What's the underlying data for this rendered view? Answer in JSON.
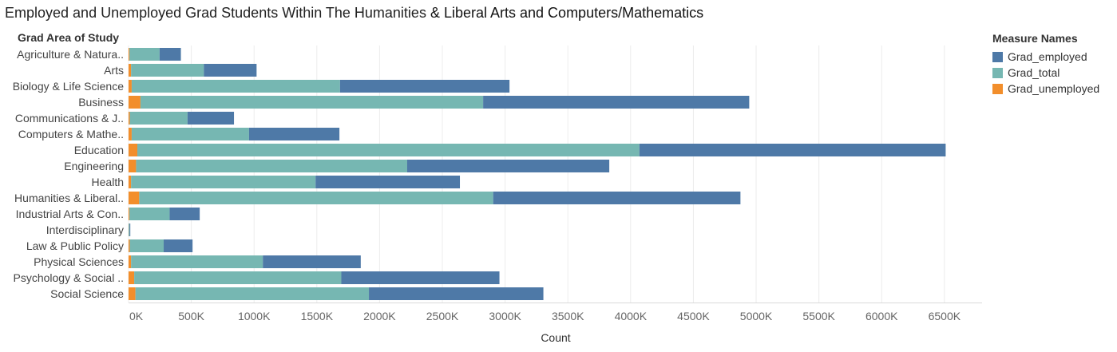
{
  "title": {
    "part1": "Employed and Unemployed Grad Students Within The Humanities",
    "part2": "& Liberal Arts and Computers/Mathematics"
  },
  "legend": {
    "title": "Measure Names",
    "items": [
      {
        "label": "Grad_employed",
        "color": "#4e79a7"
      },
      {
        "label": "Grad_total",
        "color": "#76b7b2"
      },
      {
        "label": "Grad_unemployed",
        "color": "#f28e2b"
      }
    ]
  },
  "chart_data": {
    "type": "bar",
    "orientation": "horizontal",
    "stacked": true,
    "ylabel": "Grad Area of Study",
    "xlabel": "Count",
    "xlim": [
      0,
      6800000
    ],
    "xticks": [
      0,
      500000,
      1000000,
      1500000,
      2000000,
      2500000,
      3000000,
      3500000,
      4000000,
      4500000,
      5000000,
      5500000,
      6000000,
      6500000
    ],
    "xtick_labels": [
      "0K",
      "500K",
      "1000K",
      "1500K",
      "2000K",
      "2500K",
      "3000K",
      "3500K",
      "4000K",
      "4500K",
      "5000K",
      "5500K",
      "6000K",
      "6500K"
    ],
    "grid": "vertical",
    "categories": [
      "Agriculture & Natura..",
      "Arts",
      "Biology & Life Science",
      "Business",
      "Communications & J..",
      "Computers & Mathe..",
      "Education",
      "Engineering",
      "Health",
      "Humanities & Liberal..",
      "Industrial Arts & Con..",
      "Interdisciplinary",
      "Law & Public Policy",
      "Physical Sciences",
      "Psychology & Social ..",
      "Social Science"
    ],
    "series": [
      {
        "name": "Grad_unemployed",
        "color": "#f28e2b",
        "values": [
          7000,
          20000,
          25000,
          95000,
          10000,
          25000,
          70000,
          60000,
          20000,
          85000,
          7000,
          1000,
          10000,
          20000,
          45000,
          55000
        ]
      },
      {
        "name": "Grad_total",
        "color": "#76b7b2",
        "values": [
          240000,
          580000,
          1660000,
          2730000,
          460000,
          935000,
          4000000,
          2160000,
          1470000,
          2820000,
          320000,
          7000,
          270000,
          1050000,
          1650000,
          1860000
        ]
      },
      {
        "name": "Grad_employed",
        "color": "#4e79a7",
        "values": [
          170000,
          420000,
          1350000,
          2120000,
          370000,
          720000,
          2440000,
          1610000,
          1150000,
          1970000,
          240000,
          6000,
          230000,
          780000,
          1260000,
          1390000
        ]
      }
    ]
  }
}
